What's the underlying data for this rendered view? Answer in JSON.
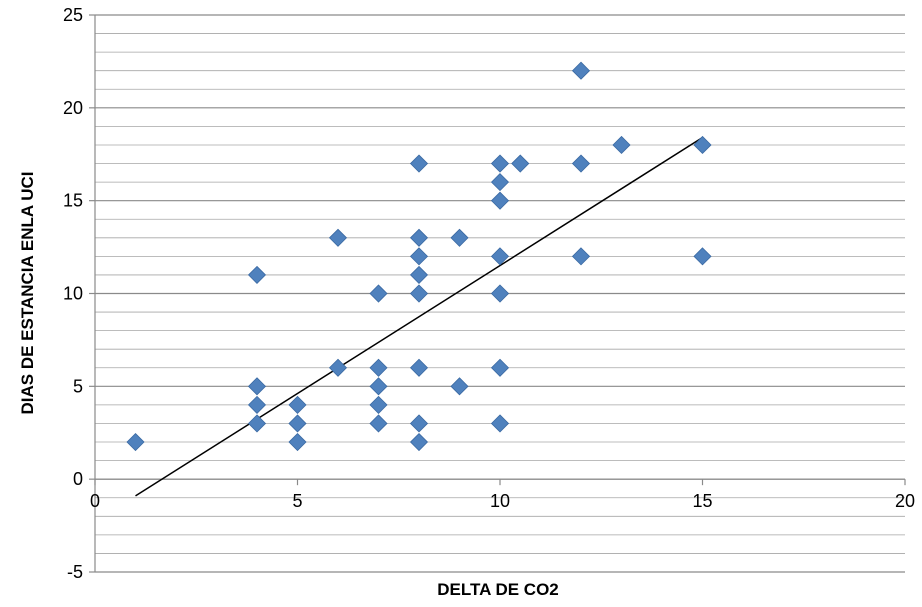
{
  "chart_data": {
    "type": "scatter",
    "title": "",
    "xlabel": "DELTA DE CO2",
    "ylabel": "DIAS DE ESTANCIA ENLA UCI",
    "xlim": [
      0,
      20
    ],
    "ylim": [
      -5,
      25
    ],
    "x_ticks": [
      0,
      5,
      10,
      15,
      20
    ],
    "y_ticks": [
      -5,
      0,
      5,
      10,
      15,
      20,
      25
    ],
    "y_minor_step": 1,
    "grid": true,
    "legend": "none",
    "marker": "diamond",
    "marker_color": "#4F81BD",
    "trendline_color": "#000000",
    "series": [
      {
        "points": [
          {
            "x": 1,
            "y": 2
          },
          {
            "x": 4,
            "y": 11
          },
          {
            "x": 4,
            "y": 5
          },
          {
            "x": 4,
            "y": 4
          },
          {
            "x": 4,
            "y": 3
          },
          {
            "x": 5,
            "y": 4
          },
          {
            "x": 5,
            "y": 3
          },
          {
            "x": 5,
            "y": 2
          },
          {
            "x": 6,
            "y": 13
          },
          {
            "x": 6,
            "y": 6
          },
          {
            "x": 7,
            "y": 10
          },
          {
            "x": 7,
            "y": 6
          },
          {
            "x": 7,
            "y": 5
          },
          {
            "x": 7,
            "y": 4
          },
          {
            "x": 7,
            "y": 3
          },
          {
            "x": 8,
            "y": 17
          },
          {
            "x": 8,
            "y": 13
          },
          {
            "x": 8,
            "y": 12
          },
          {
            "x": 8,
            "y": 11
          },
          {
            "x": 8,
            "y": 10
          },
          {
            "x": 8,
            "y": 6
          },
          {
            "x": 8,
            "y": 3
          },
          {
            "x": 8,
            "y": 2
          },
          {
            "x": 9,
            "y": 13
          },
          {
            "x": 9,
            "y": 5
          },
          {
            "x": 10,
            "y": 17
          },
          {
            "x": 10,
            "y": 16
          },
          {
            "x": 10,
            "y": 15
          },
          {
            "x": 10,
            "y": 12
          },
          {
            "x": 10,
            "y": 10
          },
          {
            "x": 10,
            "y": 6
          },
          {
            "x": 10,
            "y": 3
          },
          {
            "x": 10.5,
            "y": 17
          },
          {
            "x": 12,
            "y": 22
          },
          {
            "x": 12,
            "y": 17
          },
          {
            "x": 12,
            "y": 12
          },
          {
            "x": 13,
            "y": 18
          },
          {
            "x": 15,
            "y": 18
          },
          {
            "x": 15,
            "y": 12
          }
        ]
      }
    ],
    "trendline": {
      "x1": 1,
      "y1": -0.9,
      "x2": 15,
      "y2": 18.4
    }
  }
}
